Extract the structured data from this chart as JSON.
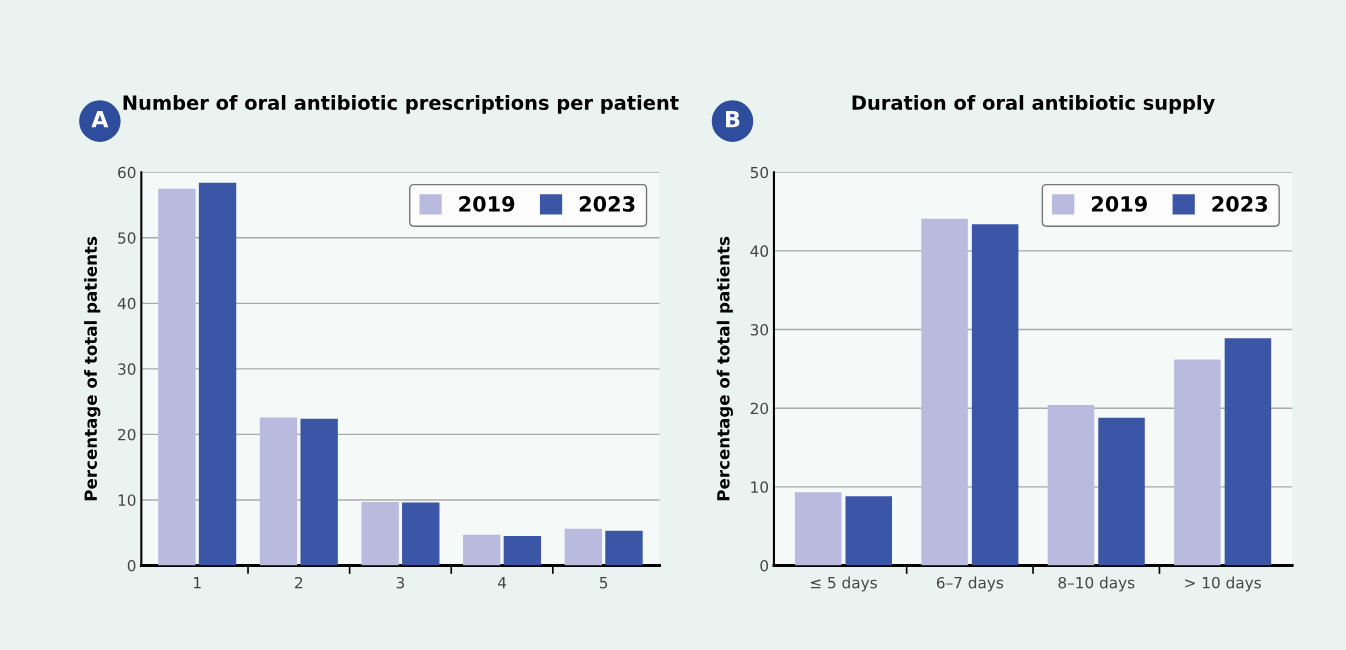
{
  "chart_data": [
    {
      "type": "bar",
      "title": "Number of oral antibiotic prescriptions per patient",
      "annotations": [
        "A"
      ],
      "ylabel": "Percentage of total patients",
      "categories": [
        "1",
        "2",
        "3",
        "4",
        "5"
      ],
      "series": [
        {
          "name": "2019",
          "color": "#b8bbde",
          "values": [
            57.5,
            22.6,
            9.7,
            4.7,
            5.6
          ]
        },
        {
          "name": "2023",
          "color": "#3b56a6",
          "values": [
            58.4,
            22.4,
            9.6,
            4.5,
            5.3
          ]
        }
      ],
      "ylim": [
        0,
        60
      ],
      "yticks": [
        0,
        10,
        20,
        30,
        40,
        50,
        60
      ],
      "grid": "y",
      "legend": "top right"
    },
    {
      "type": "bar",
      "title": "Duration of oral antibiotic supply",
      "annotations": [
        "B"
      ],
      "ylabel": "Percentage of total patients",
      "categories": [
        "≤ 5 days",
        "6–7 days",
        "8–10 days",
        "> 10 days"
      ],
      "series": [
        {
          "name": "2019",
          "color": "#b8bbde",
          "values": [
            9.3,
            44.1,
            20.4,
            26.2
          ]
        },
        {
          "name": "2023",
          "color": "#3b56a6",
          "values": [
            8.8,
            43.4,
            18.8,
            28.9
          ]
        }
      ],
      "ylim": [
        0,
        50
      ],
      "yticks": [
        0,
        10,
        20,
        30,
        40,
        50
      ],
      "grid": "y",
      "legend": "top right"
    }
  ]
}
